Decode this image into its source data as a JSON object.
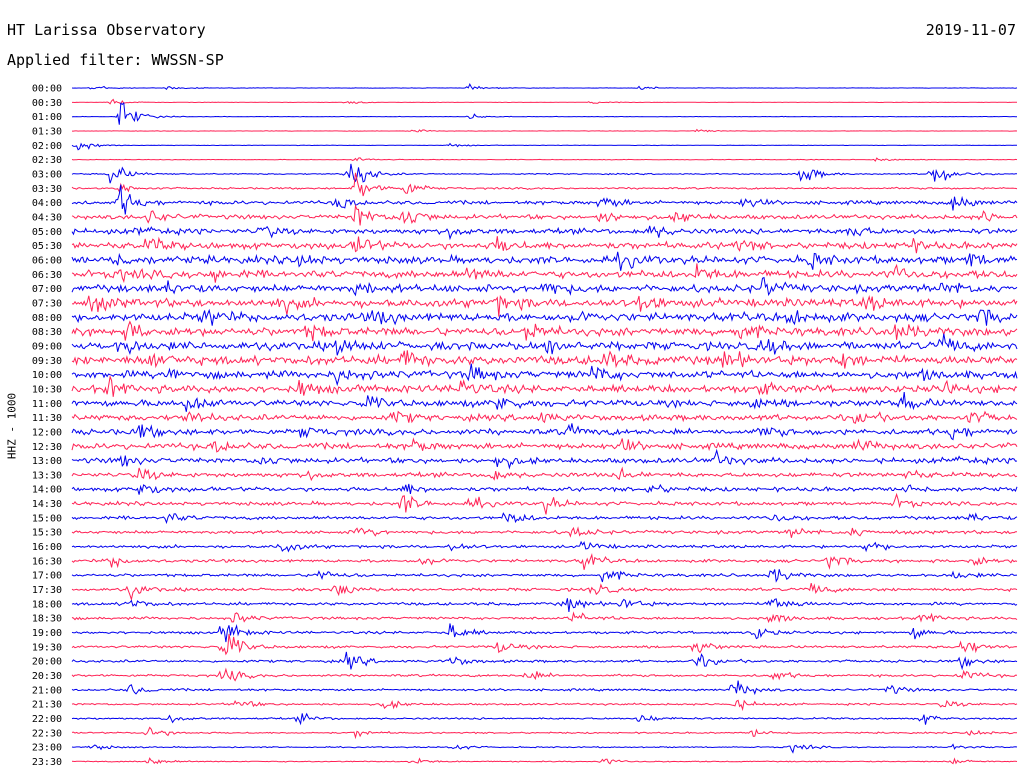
{
  "header": {
    "title": "HT Larissa Observatory",
    "filter": "Applied filter: WWSSN-SP",
    "date": "2019-11-07"
  },
  "chart_data": {
    "type": "line",
    "title": "HT Larissa Observatory",
    "subtitle": "Applied filter: WWSSN-SP",
    "date": "2019-11-07",
    "ylabel": "HHZ - 1000",
    "xlabel": "",
    "colors": [
      "#0000ee",
      "#ff2255"
    ],
    "rows": [
      {
        "label": "00:00",
        "noise": 0.25,
        "events": [
          [
            0.02,
            6
          ],
          [
            0.1,
            4
          ],
          [
            0.42,
            4
          ],
          [
            0.6,
            3
          ]
        ]
      },
      {
        "label": "00:30",
        "noise": 0.25,
        "events": [
          [
            0.04,
            5
          ],
          [
            0.29,
            3
          ],
          [
            0.55,
            3
          ]
        ]
      },
      {
        "label": "01:00",
        "noise": 0.3,
        "events": [
          [
            0.05,
            30
          ],
          [
            0.42,
            4
          ]
        ]
      },
      {
        "label": "01:30",
        "noise": 0.25,
        "events": [
          [
            0.36,
            3
          ],
          [
            0.66,
            3
          ]
        ]
      },
      {
        "label": "02:00",
        "noise": 0.3,
        "events": [
          [
            0.005,
            10
          ],
          [
            0.4,
            3
          ]
        ]
      },
      {
        "label": "02:30",
        "noise": 0.4,
        "events": [
          [
            0.3,
            4
          ],
          [
            0.85,
            4
          ]
        ]
      },
      {
        "label": "03:00",
        "noise": 0.8,
        "events": [
          [
            0.04,
            20
          ],
          [
            0.29,
            18
          ],
          [
            0.3,
            14
          ],
          [
            0.77,
            20
          ],
          [
            0.91,
            25
          ]
        ]
      },
      {
        "label": "03:30",
        "noise": 1.2,
        "events": [
          [
            0.05,
            8
          ],
          [
            0.3,
            25
          ],
          [
            0.35,
            15
          ]
        ]
      },
      {
        "label": "04:00",
        "noise": 2.5,
        "events": [
          [
            0.05,
            25
          ],
          [
            0.28,
            15
          ],
          [
            0.56,
            12
          ],
          [
            0.71,
            10
          ],
          [
            0.93,
            18
          ]
        ]
      },
      {
        "label": "04:30",
        "noise": 3.0,
        "events": [
          [
            0.08,
            12
          ],
          [
            0.3,
            20
          ],
          [
            0.35,
            22
          ],
          [
            0.56,
            12
          ],
          [
            0.64,
            10
          ],
          [
            0.96,
            12
          ]
        ]
      },
      {
        "label": "05:00",
        "noise": 3.5,
        "events": [
          [
            0.07,
            15
          ],
          [
            0.2,
            10
          ],
          [
            0.4,
            10
          ],
          [
            0.61,
            12
          ],
          [
            0.82,
            14
          ]
        ]
      },
      {
        "label": "05:30",
        "noise": 4.5,
        "events": [
          [
            0.08,
            12
          ],
          [
            0.3,
            15
          ],
          [
            0.45,
            14
          ],
          [
            0.7,
            10
          ],
          [
            0.88,
            12
          ]
        ]
      },
      {
        "label": "06:00",
        "noise": 5,
        "events": [
          [
            0.04,
            12
          ],
          [
            0.24,
            10
          ],
          [
            0.58,
            12
          ],
          [
            0.78,
            12
          ],
          [
            0.95,
            10
          ]
        ]
      },
      {
        "label": "06:30",
        "noise": 5,
        "events": [
          [
            0.05,
            10
          ],
          [
            0.15,
            10
          ],
          [
            0.42,
            12
          ],
          [
            0.66,
            12
          ],
          [
            0.87,
            12
          ]
        ]
      },
      {
        "label": "07:00",
        "noise": 5,
        "events": [
          [
            0.1,
            14
          ],
          [
            0.3,
            10
          ],
          [
            0.5,
            12
          ],
          [
            0.73,
            14
          ],
          [
            0.92,
            12
          ]
        ]
      },
      {
        "label": "07:30",
        "noise": 5.5,
        "events": [
          [
            0.02,
            12
          ],
          [
            0.22,
            12
          ],
          [
            0.45,
            14
          ],
          [
            0.6,
            12
          ],
          [
            0.84,
            10
          ]
        ]
      },
      {
        "label": "08:00",
        "noise": 5.5,
        "events": [
          [
            0.14,
            14
          ],
          [
            0.32,
            14
          ],
          [
            0.53,
            10
          ],
          [
            0.76,
            12
          ],
          [
            0.96,
            12
          ]
        ]
      },
      {
        "label": "08:30",
        "noise": 5.5,
        "events": [
          [
            0.06,
            14
          ],
          [
            0.25,
            12
          ],
          [
            0.48,
            16
          ],
          [
            0.7,
            14
          ],
          [
            0.87,
            16
          ]
        ]
      },
      {
        "label": "09:00",
        "noise": 5.5,
        "events": [
          [
            0.05,
            14
          ],
          [
            0.28,
            12
          ],
          [
            0.5,
            12
          ],
          [
            0.73,
            14
          ],
          [
            0.92,
            16
          ]
        ]
      },
      {
        "label": "09:30",
        "noise": 6,
        "events": [
          [
            0.08,
            14
          ],
          [
            0.35,
            16
          ],
          [
            0.56,
            14
          ],
          [
            0.69,
            14
          ],
          [
            0.81,
            12
          ]
        ]
      },
      {
        "label": "10:00",
        "noise": 5,
        "events": [
          [
            0.1,
            12
          ],
          [
            0.28,
            12
          ],
          [
            0.42,
            14
          ],
          [
            0.55,
            12
          ],
          [
            0.9,
            10
          ]
        ]
      },
      {
        "label": "10:30",
        "noise": 5,
        "events": [
          [
            0.04,
            12
          ],
          [
            0.24,
            12
          ],
          [
            0.41,
            18
          ],
          [
            0.72,
            12
          ],
          [
            0.92,
            10
          ]
        ]
      },
      {
        "label": "11:00",
        "noise": 4.5,
        "events": [
          [
            0.12,
            14
          ],
          [
            0.31,
            10
          ],
          [
            0.45,
            16
          ],
          [
            0.72,
            10
          ],
          [
            0.88,
            12
          ]
        ]
      },
      {
        "label": "11:30",
        "noise": 4,
        "events": [
          [
            0.12,
            10
          ],
          [
            0.34,
            10
          ],
          [
            0.49,
            12
          ],
          [
            0.83,
            10
          ],
          [
            0.95,
            10
          ]
        ]
      },
      {
        "label": "12:00",
        "noise": 4,
        "events": [
          [
            0.07,
            12
          ],
          [
            0.24,
            10
          ],
          [
            0.52,
            12
          ],
          [
            0.73,
            10
          ],
          [
            0.93,
            12
          ]
        ]
      },
      {
        "label": "12:30",
        "noise": 4,
        "events": [
          [
            0.15,
            12
          ],
          [
            0.36,
            10
          ],
          [
            0.58,
            10
          ],
          [
            0.83,
            12
          ]
        ]
      },
      {
        "label": "13:00",
        "noise": 3.5,
        "events": [
          [
            0.05,
            10
          ],
          [
            0.2,
            10
          ],
          [
            0.45,
            12
          ],
          [
            0.68,
            12
          ],
          [
            0.93,
            10
          ]
        ]
      },
      {
        "label": "13:30",
        "noise": 3,
        "events": [
          [
            0.07,
            12
          ],
          [
            0.25,
            8
          ],
          [
            0.44,
            12
          ],
          [
            0.58,
            8
          ],
          [
            0.88,
            10
          ]
        ]
      },
      {
        "label": "14:00",
        "noise": 2.8,
        "events": [
          [
            0.07,
            14
          ],
          [
            0.35,
            10
          ],
          [
            0.61,
            10
          ],
          [
            0.88,
            10
          ]
        ]
      },
      {
        "label": "14:30",
        "noise": 2.5,
        "events": [
          [
            0.35,
            16
          ],
          [
            0.42,
            10
          ],
          [
            0.5,
            12
          ],
          [
            0.87,
            10
          ]
        ]
      },
      {
        "label": "15:00",
        "noise": 2.3,
        "events": [
          [
            0.1,
            8
          ],
          [
            0.46,
            12
          ],
          [
            0.74,
            10
          ],
          [
            0.95,
            10
          ]
        ]
      },
      {
        "label": "15:30",
        "noise": 2.2,
        "events": [
          [
            0.3,
            12
          ],
          [
            0.53,
            10
          ],
          [
            0.76,
            10
          ],
          [
            0.82,
            10
          ]
        ]
      },
      {
        "label": "16:00",
        "noise": 2,
        "events": [
          [
            0.22,
            12
          ],
          [
            0.4,
            8
          ],
          [
            0.54,
            10
          ],
          [
            0.84,
            10
          ]
        ]
      },
      {
        "label": "16:30",
        "noise": 2,
        "events": [
          [
            0.04,
            10
          ],
          [
            0.37,
            10
          ],
          [
            0.54,
            14
          ],
          [
            0.8,
            12
          ],
          [
            0.95,
            10
          ]
        ]
      },
      {
        "label": "17:00",
        "noise": 2,
        "events": [
          [
            0.26,
            10
          ],
          [
            0.56,
            12
          ],
          [
            0.74,
            14
          ],
          [
            0.93,
            8
          ]
        ]
      },
      {
        "label": "17:30",
        "noise": 2,
        "events": [
          [
            0.06,
            12
          ],
          [
            0.28,
            14
          ],
          [
            0.55,
            12
          ],
          [
            0.78,
            12
          ]
        ]
      },
      {
        "label": "18:00",
        "noise": 2,
        "events": [
          [
            0.06,
            10
          ],
          [
            0.52,
            14
          ],
          [
            0.58,
            12
          ],
          [
            0.74,
            18
          ]
        ]
      },
      {
        "label": "18:30",
        "noise": 1.8,
        "events": [
          [
            0.17,
            10
          ],
          [
            0.53,
            10
          ],
          [
            0.74,
            12
          ],
          [
            0.9,
            10
          ]
        ]
      },
      {
        "label": "19:00",
        "noise": 1.8,
        "events": [
          [
            0.16,
            20
          ],
          [
            0.4,
            14
          ],
          [
            0.72,
            12
          ],
          [
            0.89,
            10
          ]
        ]
      },
      {
        "label": "19:30",
        "noise": 1.8,
        "events": [
          [
            0.16,
            30
          ],
          [
            0.45,
            10
          ],
          [
            0.66,
            12
          ],
          [
            0.94,
            18
          ]
        ]
      },
      {
        "label": "20:00",
        "noise": 1.7,
        "events": [
          [
            0.29,
            14
          ],
          [
            0.4,
            10
          ],
          [
            0.66,
            12
          ],
          [
            0.94,
            10
          ]
        ]
      },
      {
        "label": "20:30",
        "noise": 1.6,
        "events": [
          [
            0.16,
            14
          ],
          [
            0.48,
            10
          ],
          [
            0.74,
            10
          ],
          [
            0.94,
            12
          ]
        ]
      },
      {
        "label": "21:00",
        "noise": 1.5,
        "events": [
          [
            0.06,
            10
          ],
          [
            0.7,
            20
          ],
          [
            0.86,
            10
          ]
        ]
      },
      {
        "label": "21:30",
        "noise": 1.3,
        "events": [
          [
            0.17,
            10
          ],
          [
            0.33,
            8
          ],
          [
            0.7,
            10
          ],
          [
            0.92,
            8
          ]
        ]
      },
      {
        "label": "22:00",
        "noise": 1.2,
        "events": [
          [
            0.1,
            10
          ],
          [
            0.24,
            8
          ],
          [
            0.6,
            8
          ],
          [
            0.9,
            8
          ]
        ]
      },
      {
        "label": "22:30",
        "noise": 1,
        "events": [
          [
            0.08,
            12
          ],
          [
            0.3,
            6
          ],
          [
            0.72,
            8
          ],
          [
            0.95,
            6
          ]
        ]
      },
      {
        "label": "23:00",
        "noise": 0.8,
        "events": [
          [
            0.02,
            6
          ],
          [
            0.4,
            6
          ],
          [
            0.76,
            10
          ],
          [
            0.93,
            6
          ]
        ]
      },
      {
        "label": "23:30",
        "noise": 0.7,
        "events": [
          [
            0.08,
            8
          ],
          [
            0.36,
            6
          ],
          [
            0.56,
            6
          ],
          [
            0.93,
            6
          ]
        ]
      }
    ]
  }
}
